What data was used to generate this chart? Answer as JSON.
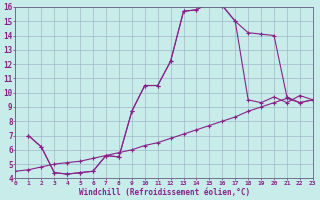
{
  "xlabel": "Windchill (Refroidissement éolien,°C)",
  "bg_color": "#c8ecea",
  "grid_color": "#a0b8c8",
  "line_color": "#882288",
  "line1_x": [
    1,
    2,
    3,
    4,
    5,
    6,
    7,
    8,
    9,
    10,
    11,
    12,
    13,
    14,
    15,
    16,
    17,
    18,
    19,
    20,
    21,
    22,
    23
  ],
  "line1_y": [
    7.0,
    6.2,
    4.4,
    4.3,
    4.4,
    4.5,
    5.6,
    5.5,
    8.7,
    10.5,
    10.5,
    12.2,
    15.7,
    15.8,
    16.3,
    16.1,
    15.0,
    9.5,
    9.3,
    9.7,
    9.3,
    9.8,
    9.5
  ],
  "line2_x": [
    1,
    2,
    3,
    4,
    5,
    6,
    7,
    8,
    9,
    10,
    11,
    12,
    13,
    14,
    15,
    16,
    17,
    18,
    19,
    20,
    21,
    22,
    23
  ],
  "line2_y": [
    7.0,
    6.2,
    4.4,
    4.3,
    4.4,
    4.5,
    5.6,
    5.5,
    8.7,
    10.5,
    10.5,
    12.2,
    15.7,
    15.8,
    16.3,
    16.1,
    15.0,
    14.2,
    14.1,
    14.0,
    9.7,
    9.3,
    9.5
  ],
  "line3_x": [
    0,
    1,
    2,
    3,
    4,
    5,
    6,
    7,
    8,
    9,
    10,
    11,
    12,
    13,
    14,
    15,
    16,
    17,
    18,
    19,
    20,
    21,
    22,
    23
  ],
  "line3_y": [
    4.5,
    4.6,
    4.8,
    5.0,
    5.1,
    5.2,
    5.4,
    5.6,
    5.8,
    6.0,
    6.3,
    6.5,
    6.8,
    7.1,
    7.4,
    7.7,
    8.0,
    8.3,
    8.7,
    9.0,
    9.3,
    9.6,
    9.3,
    9.5
  ],
  "xlim": [
    0,
    23
  ],
  "ylim": [
    4,
    16
  ],
  "xticks": [
    0,
    1,
    2,
    3,
    4,
    5,
    6,
    7,
    8,
    9,
    10,
    11,
    12,
    13,
    14,
    15,
    16,
    17,
    18,
    19,
    20,
    21,
    22,
    23
  ],
  "yticks": [
    4,
    5,
    6,
    7,
    8,
    9,
    10,
    11,
    12,
    13,
    14,
    15,
    16
  ]
}
